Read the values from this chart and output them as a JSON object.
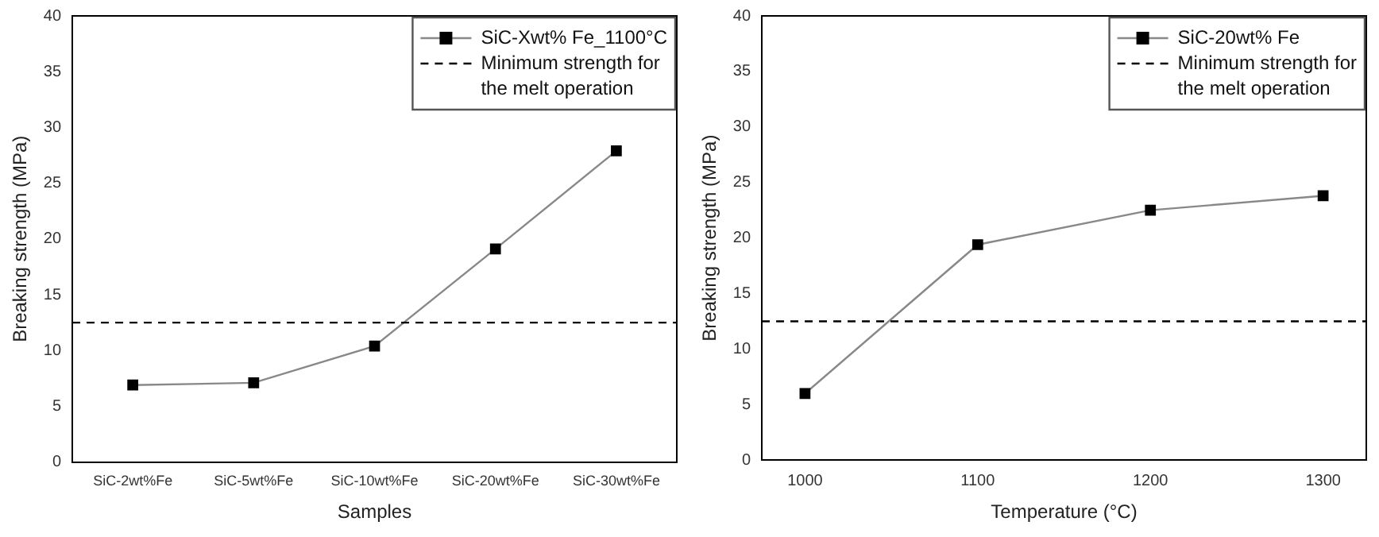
{
  "chart_data": [
    {
      "type": "line",
      "xlabel": "Samples",
      "ylabel": "Breaking strength (MPa)",
      "categories": [
        "SiC-2wt%Fe",
        "SiC-5wt%Fe",
        "SiC-10wt%Fe",
        "SiC-20wt%Fe",
        "SiC-30wt%Fe"
      ],
      "ylim": [
        0,
        40
      ],
      "yticks": [
        0,
        5,
        10,
        15,
        20,
        25,
        30,
        35,
        40
      ],
      "marker": "square",
      "legend": "top right",
      "series": [
        {
          "name": "SiC-Xwt% Fe_1100°C",
          "color": "#000000",
          "values": [
            6.9,
            7.1,
            10.4,
            19.1,
            27.9
          ]
        }
      ],
      "ref_lines": [
        {
          "axis": "y",
          "value": 12.5,
          "label": "Minimum strength for the melt operation",
          "color": "#000000",
          "line_style": "dashed"
        }
      ]
    },
    {
      "type": "line",
      "xlabel": "Temperature (°C)",
      "ylabel": "Breaking strength (MPa)",
      "x": [
        1000,
        1100,
        1200,
        1300
      ],
      "xlim": [
        975,
        1325
      ],
      "xticks": [
        1000,
        1100,
        1200,
        1300
      ],
      "ylim": [
        0,
        40
      ],
      "yticks": [
        0,
        5,
        10,
        15,
        20,
        25,
        30,
        35,
        40
      ],
      "marker": "square",
      "legend": "top right",
      "series": [
        {
          "name": "SiC-20wt% Fe",
          "color": "#000000",
          "values": [
            6.0,
            19.4,
            22.5,
            23.8
          ]
        }
      ],
      "ref_lines": [
        {
          "axis": "y",
          "value": 12.5,
          "label": "Minimum strength for the melt operation",
          "color": "#000000",
          "line_style": "dashed"
        }
      ]
    }
  ]
}
